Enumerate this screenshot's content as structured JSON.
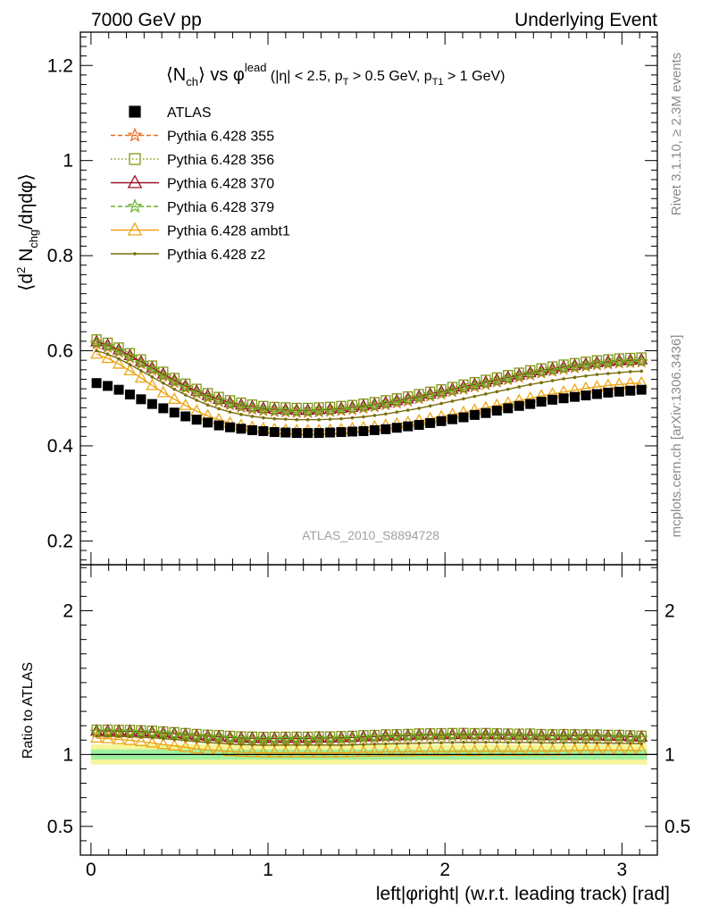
{
  "header": {
    "left": "7000 GeV pp",
    "right": "Underlying Event"
  },
  "side_labels": {
    "rivet": "Rivet 3.1.10, ≥ 2.3M events",
    "mcplots": "mcplots.cern.ch [arXiv:1306.3436]"
  },
  "watermark": "ATLAS_2010_S8894728",
  "title_parts": {
    "n": "⟨N",
    "n_sub": "ch",
    "vs": "⟩ vs φ",
    "vs_sup": "lead",
    "cuts_a": " (|η| < 2.5, p",
    "cuts_a_sub": "T",
    "cuts_b": " > 0.5 GeV, p",
    "cuts_b_sub": "T1",
    "cuts_c": " > 1 GeV)"
  },
  "ylabel_parts": {
    "a": "⟨d",
    "sup": "2",
    "b": " N",
    "sub": "chg",
    "c": "/dηdφ⟩"
  },
  "ratio_ylabel": "Ratio to ATLAS",
  "colors": {
    "ATLAS": "#000000",
    "p355": "#ee6a1a",
    "p356": "#7e9a12",
    "p370": "#a01228",
    "p379": "#66b022",
    "ambt1": "#eda514",
    "z2": "#7a6e0a"
  },
  "chart_data": {
    "type": "scatter",
    "xlabel": "left|φright| (w.r.t. leading track) [rad]",
    "xlim": [
      -0.06,
      3.2
    ],
    "main_ylim": [
      0.15,
      1.27
    ],
    "ratio_ylim": [
      0.3,
      2.32
    ],
    "x_ticks": [
      0,
      1,
      2,
      3
    ],
    "main_y_ticks": [
      0.2,
      0.4,
      0.6,
      0.8,
      1,
      1.2
    ],
    "main_y_tick_labels": [
      "0.2",
      "0.4",
      "0.6",
      "0.8",
      "1",
      "1.2"
    ],
    "ratio_y_ticks": [
      0.5,
      1,
      2
    ],
    "ratio_y_tick_labels": [
      "0.5",
      "1",
      "2"
    ],
    "legend_position": "top-left",
    "x": [
      0.0314,
      0.0942,
      0.1571,
      0.2199,
      0.2827,
      0.3456,
      0.4084,
      0.4712,
      0.5341,
      0.5969,
      0.6597,
      0.7226,
      0.7854,
      0.8482,
      0.9111,
      0.9739,
      1.0367,
      1.0996,
      1.1624,
      1.2252,
      1.2881,
      1.3509,
      1.4137,
      1.4765,
      1.5394,
      1.6022,
      1.665,
      1.7279,
      1.7907,
      1.8535,
      1.9164,
      1.9792,
      2.042,
      2.1049,
      2.1677,
      2.2305,
      2.2934,
      2.3562,
      2.419,
      2.4819,
      2.5447,
      2.6075,
      2.6704,
      2.7332,
      2.796,
      2.8588,
      2.9217,
      2.9845,
      3.0473,
      3.1102
    ],
    "series": [
      {
        "name": "ATLAS",
        "key": "ATLAS",
        "marker": "square",
        "line": "none",
        "values": [
          0.532,
          0.526,
          0.518,
          0.508,
          0.498,
          0.488,
          0.479,
          0.47,
          0.462,
          0.455,
          0.449,
          0.443,
          0.439,
          0.436,
          0.433,
          0.431,
          0.429,
          0.428,
          0.427,
          0.427,
          0.427,
          0.428,
          0.429,
          0.43,
          0.431,
          0.433,
          0.435,
          0.438,
          0.441,
          0.444,
          0.448,
          0.452,
          0.456,
          0.46,
          0.465,
          0.469,
          0.474,
          0.479,
          0.484,
          0.488,
          0.493,
          0.497,
          0.5,
          0.503,
          0.506,
          0.509,
          0.512,
          0.514,
          0.516,
          0.518
        ]
      },
      {
        "name": "Pythia 6.428 355",
        "key": "p355",
        "marker": "star",
        "line": "dashed",
        "values": [
          0.614,
          0.607,
          0.597,
          0.585,
          0.572,
          0.559,
          0.546,
          0.533,
          0.521,
          0.51,
          0.501,
          0.493,
          0.486,
          0.481,
          0.477,
          0.474,
          0.472,
          0.471,
          0.47,
          0.47,
          0.471,
          0.472,
          0.474,
          0.476,
          0.479,
          0.482,
          0.486,
          0.49,
          0.494,
          0.499,
          0.504,
          0.509,
          0.514,
          0.519,
          0.524,
          0.529,
          0.534,
          0.539,
          0.544,
          0.549,
          0.553,
          0.557,
          0.561,
          0.564,
          0.567,
          0.57,
          0.572,
          0.574,
          0.575,
          0.576
        ]
      },
      {
        "name": "Pythia 6.428 356",
        "key": "p356",
        "marker": "square-open",
        "line": "dotted",
        "values": [
          0.624,
          0.617,
          0.607,
          0.595,
          0.582,
          0.569,
          0.556,
          0.543,
          0.531,
          0.52,
          0.511,
          0.503,
          0.496,
          0.491,
          0.487,
          0.484,
          0.482,
          0.481,
          0.48,
          0.48,
          0.481,
          0.482,
          0.484,
          0.486,
          0.489,
          0.492,
          0.496,
          0.5,
          0.504,
          0.509,
          0.514,
          0.519,
          0.524,
          0.529,
          0.534,
          0.539,
          0.544,
          0.549,
          0.554,
          0.559,
          0.563,
          0.567,
          0.571,
          0.574,
          0.577,
          0.58,
          0.582,
          0.584,
          0.585,
          0.586
        ]
      },
      {
        "name": "Pythia 6.428 370",
        "key": "p370",
        "marker": "triangle-open",
        "line": "solid",
        "values": [
          0.619,
          0.612,
          0.602,
          0.59,
          0.577,
          0.564,
          0.551,
          0.538,
          0.526,
          0.515,
          0.506,
          0.498,
          0.491,
          0.486,
          0.482,
          0.479,
          0.477,
          0.476,
          0.475,
          0.475,
          0.476,
          0.477,
          0.479,
          0.481,
          0.484,
          0.487,
          0.491,
          0.495,
          0.499,
          0.504,
          0.509,
          0.514,
          0.519,
          0.524,
          0.529,
          0.534,
          0.539,
          0.544,
          0.549,
          0.554,
          0.558,
          0.562,
          0.566,
          0.569,
          0.572,
          0.575,
          0.577,
          0.579,
          0.58,
          0.581
        ]
      },
      {
        "name": "Pythia 6.428 379",
        "key": "p379",
        "marker": "star",
        "line": "dashed",
        "values": [
          0.616,
          0.609,
          0.599,
          0.587,
          0.574,
          0.561,
          0.548,
          0.535,
          0.523,
          0.512,
          0.503,
          0.495,
          0.488,
          0.483,
          0.479,
          0.476,
          0.474,
          0.473,
          0.472,
          0.472,
          0.473,
          0.474,
          0.476,
          0.478,
          0.481,
          0.484,
          0.488,
          0.492,
          0.496,
          0.501,
          0.506,
          0.511,
          0.516,
          0.521,
          0.526,
          0.531,
          0.536,
          0.541,
          0.546,
          0.551,
          0.555,
          0.559,
          0.563,
          0.566,
          0.569,
          0.572,
          0.574,
          0.576,
          0.577,
          0.578
        ]
      },
      {
        "name": "Pythia 6.428 ambt1",
        "key": "ambt1",
        "marker": "triangle-open",
        "line": "solid",
        "values": [
          0.593,
          0.584,
          0.572,
          0.558,
          0.543,
          0.527,
          0.512,
          0.498,
          0.485,
          0.473,
          0.463,
          0.455,
          0.448,
          0.443,
          0.439,
          0.436,
          0.434,
          0.433,
          0.432,
          0.432,
          0.432,
          0.433,
          0.434,
          0.436,
          0.438,
          0.44,
          0.443,
          0.446,
          0.449,
          0.453,
          0.457,
          0.461,
          0.466,
          0.47,
          0.475,
          0.48,
          0.485,
          0.49,
          0.495,
          0.5,
          0.505,
          0.509,
          0.513,
          0.517,
          0.521,
          0.524,
          0.527,
          0.529,
          0.531,
          0.532
        ]
      },
      {
        "name": "Pythia 6.428 z2",
        "key": "z2",
        "marker": "dot",
        "line": "solid",
        "values": [
          0.6,
          0.593,
          0.583,
          0.571,
          0.558,
          0.545,
          0.532,
          0.519,
          0.507,
          0.496,
          0.486,
          0.478,
          0.471,
          0.466,
          0.462,
          0.459,
          0.457,
          0.456,
          0.455,
          0.455,
          0.455,
          0.456,
          0.457,
          0.459,
          0.461,
          0.464,
          0.467,
          0.471,
          0.475,
          0.479,
          0.484,
          0.489,
          0.494,
          0.499,
          0.504,
          0.509,
          0.514,
          0.519,
          0.524,
          0.529,
          0.533,
          0.537,
          0.541,
          0.544,
          0.547,
          0.55,
          0.552,
          0.554,
          0.556,
          0.557
        ]
      }
    ]
  }
}
